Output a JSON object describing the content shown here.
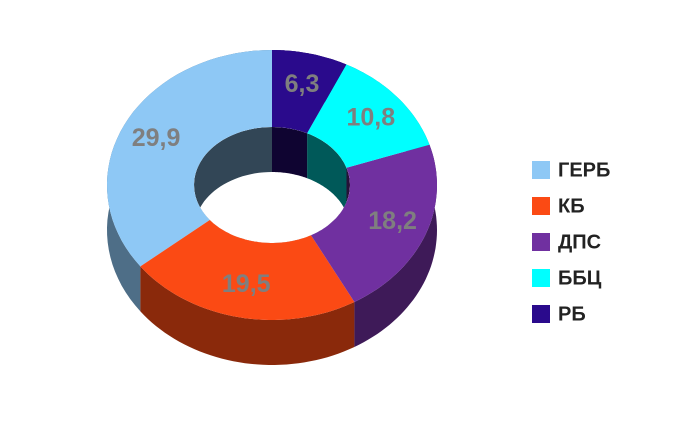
{
  "chart_data": {
    "type": "pie",
    "categories": [
      "ГЕРБ",
      "КБ",
      "ДПС",
      "ББЦ",
      "РБ"
    ],
    "values": [
      29.9,
      19.5,
      18.2,
      10.8,
      6.3
    ],
    "value_labels": [
      "29,9",
      "19,5",
      "18,2",
      "10,8",
      "6,3"
    ],
    "colors": [
      "#8ec8f5",
      "#fb4a14",
      "#7030a0",
      "#00ffff",
      "#2a0a8c"
    ]
  }
}
